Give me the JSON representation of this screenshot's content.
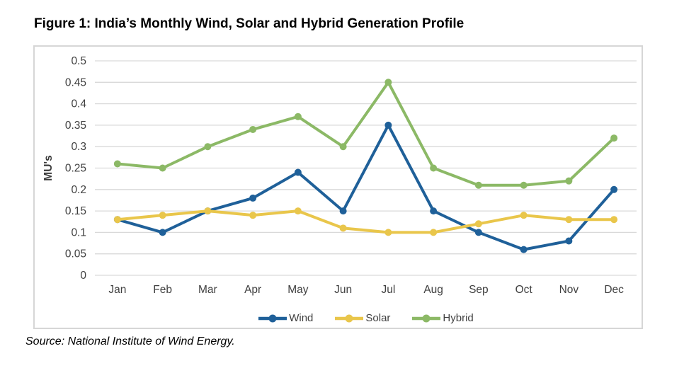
{
  "figure": {
    "title": "Figure 1: India’s Monthly Wind, Solar and Hybrid Generation Profile",
    "source": "Source: National Institute of Wind Energy."
  },
  "chart_data": {
    "type": "line",
    "title": "",
    "xlabel": "",
    "ylabel": "MU's",
    "categories": [
      "Jan",
      "Feb",
      "Mar",
      "Apr",
      "May",
      "Jun",
      "Jul",
      "Aug",
      "Sep",
      "Oct",
      "Nov",
      "Dec"
    ],
    "series": [
      {
        "name": "Wind",
        "color": "#1F6099",
        "values": [
          0.13,
          0.1,
          0.15,
          0.18,
          0.24,
          0.15,
          0.35,
          0.15,
          0.1,
          0.06,
          0.08,
          0.2
        ]
      },
      {
        "name": "Solar",
        "color": "#E9C64B",
        "values": [
          0.13,
          0.14,
          0.15,
          0.14,
          0.15,
          0.11,
          0.1,
          0.1,
          0.12,
          0.14,
          0.13,
          0.13
        ]
      },
      {
        "name": "Hybrid",
        "color": "#8CB966",
        "values": [
          0.26,
          0.25,
          0.3,
          0.34,
          0.37,
          0.3,
          0.45,
          0.25,
          0.21,
          0.21,
          0.22,
          0.32
        ]
      }
    ],
    "ylim": [
      0,
      0.5
    ],
    "ytick_step": 0.05,
    "ytick_labels": [
      "0",
      "0.05",
      "0.1",
      "0.15",
      "0.2",
      "0.25",
      "0.3",
      "0.35",
      "0.4",
      "0.45",
      "0.5"
    ],
    "grid": true,
    "legend_position": "bottom",
    "colors": {
      "grid": "#D9D9D9",
      "axis_text": "#404040",
      "panel_border": "#D6D6D6"
    }
  }
}
